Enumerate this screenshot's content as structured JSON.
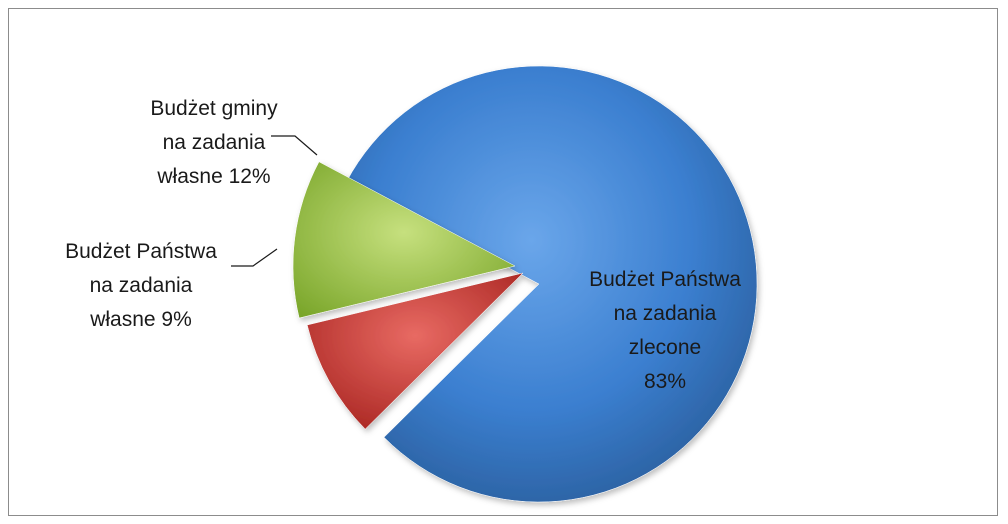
{
  "chart_data": {
    "type": "pie",
    "title": "",
    "series": [
      {
        "values": [
          83,
          9,
          12
        ]
      }
    ],
    "slices": [
      {
        "label_lines": [
          "Budżet Państwa",
          "na zadania",
          "zlecone",
          "83%"
        ],
        "value": 83,
        "color": "#3b7fd0"
      },
      {
        "label_lines": [
          "Budżet Państwa",
          "na zadania",
          "własne 9%"
        ],
        "value": 9,
        "color": "#c9302c"
      },
      {
        "label_lines": [
          "Budżet gminy",
          "na zadania",
          "własne 12%"
        ],
        "value": 12,
        "color": "#8fbf3a"
      }
    ],
    "legend": "none",
    "exploded": true
  }
}
